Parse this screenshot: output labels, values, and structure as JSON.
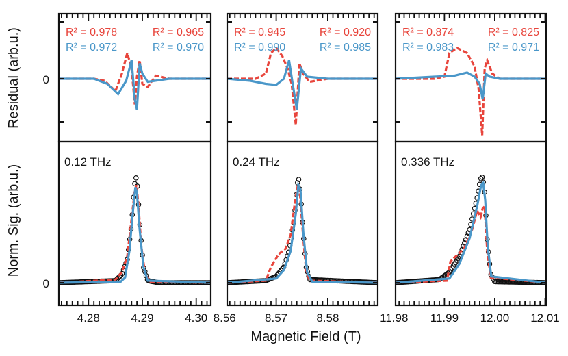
{
  "chart_data": {
    "type": "line",
    "xlabel": "Magnetic Field (T)",
    "ylabel_top": "Residual (arb.u.)",
    "ylabel_bottom": "Norm. Sig. (arb.u.)",
    "y_zero_label": "0",
    "colors": {
      "data": "#111111",
      "red": "#e8453c",
      "blue": "#4a97c9"
    },
    "panels": [
      {
        "frequency": "0.12 THz",
        "xlim": [
          4.2745,
          4.3027
        ],
        "xticks": [
          "4.28",
          "4.29",
          "4.30"
        ],
        "xtick_values": [
          4.28,
          4.29,
          4.3
        ],
        "r2": {
          "red_left": "R² = 0.978",
          "red_right": "R² = 0.965",
          "blue_left": "R² = 0.972",
          "blue_right": "R² = 0.970"
        },
        "residual": {
          "red": [
            [
              4.2745,
              0
            ],
            [
              4.281,
              0
            ],
            [
              4.283,
              -0.02
            ],
            [
              4.285,
              -0.12
            ],
            [
              4.2862,
              0.05
            ],
            [
              4.2872,
              0.25
            ],
            [
              4.288,
              0.1
            ],
            [
              4.2886,
              -0.25
            ],
            [
              4.289,
              0.02
            ],
            [
              4.2895,
              0.18
            ],
            [
              4.29,
              -0.05
            ],
            [
              4.291,
              -0.08
            ],
            [
              4.2925,
              0.03
            ],
            [
              4.295,
              0
            ],
            [
              4.3027,
              0
            ]
          ],
          "blue": [
            [
              4.2745,
              0
            ],
            [
              4.281,
              0
            ],
            [
              4.2835,
              -0.05
            ],
            [
              4.2855,
              -0.15
            ],
            [
              4.287,
              -0.02
            ],
            [
              4.288,
              0.18
            ],
            [
              4.2886,
              -0.2
            ],
            [
              4.289,
              -0.3
            ],
            [
              4.2895,
              0.15
            ],
            [
              4.29,
              0.05
            ],
            [
              4.291,
              -0.03
            ],
            [
              4.295,
              0
            ],
            [
              4.3027,
              0
            ]
          ]
        },
        "signal": {
          "data": [
            [
              4.2745,
              0
            ],
            [
              4.285,
              0.02
            ],
            [
              4.2862,
              0.08
            ],
            [
              4.2872,
              0.22
            ],
            [
              4.288,
              0.55
            ],
            [
              4.2885,
              0.9
            ],
            [
              4.2888,
              1.0
            ],
            [
              4.2891,
              0.9
            ],
            [
              4.2896,
              0.5
            ],
            [
              4.2902,
              0.15
            ],
            [
              4.291,
              0.02
            ],
            [
              4.293,
              0
            ],
            [
              4.3027,
              0
            ]
          ],
          "red": [
            [
              4.2745,
              0
            ],
            [
              4.285,
              0.03
            ],
            [
              4.2862,
              0.1
            ],
            [
              4.2872,
              0.25
            ],
            [
              4.288,
              0.6
            ],
            [
              4.2886,
              0.87
            ],
            [
              4.2889,
              0.92
            ],
            [
              4.2893,
              0.72
            ],
            [
              4.2898,
              0.35
            ],
            [
              4.2905,
              0.08
            ],
            [
              4.2915,
              0.01
            ],
            [
              4.3027,
              0
            ]
          ],
          "blue": [
            [
              4.2745,
              0
            ],
            [
              4.286,
              0.01
            ],
            [
              4.2868,
              0.05
            ],
            [
              4.2876,
              0.3
            ],
            [
              4.2882,
              0.65
            ],
            [
              4.2887,
              0.9
            ],
            [
              4.289,
              0.85
            ],
            [
              4.2895,
              0.5
            ],
            [
              4.2902,
              0.15
            ],
            [
              4.291,
              0.02
            ],
            [
              4.3027,
              0
            ]
          ]
        }
      },
      {
        "frequency": "0.24 THz",
        "xlim": [
          8.5605,
          8.5897
        ],
        "xticks": [
          "8.56",
          "8.57",
          "8.58"
        ],
        "xtick_values": [
          8.56,
          8.57,
          8.58
        ],
        "r2": {
          "red_left": "R² = 0.945",
          "red_right": "R² = 0.920",
          "blue_left": "R² = 0.990",
          "blue_right": "R² = 0.985"
        },
        "residual": {
          "red": [
            [
              8.5605,
              0
            ],
            [
              8.566,
              0
            ],
            [
              8.568,
              0.05
            ],
            [
              8.569,
              0.25
            ],
            [
              8.57,
              0.3
            ],
            [
              8.5712,
              0.22
            ],
            [
              8.5722,
              0.1
            ],
            [
              8.573,
              -0.05
            ],
            [
              8.5738,
              -0.45
            ],
            [
              8.5745,
              0.15
            ],
            [
              8.5752,
              0.05
            ],
            [
              8.5765,
              -0.03
            ],
            [
              8.58,
              0
            ],
            [
              8.5897,
              0
            ]
          ],
          "blue": [
            [
              8.5605,
              0
            ],
            [
              8.565,
              -0.02
            ],
            [
              8.568,
              -0.05
            ],
            [
              8.57,
              -0.06
            ],
            [
              8.5715,
              0.0
            ],
            [
              8.5725,
              0.18
            ],
            [
              8.5732,
              -0.05
            ],
            [
              8.574,
              -0.3
            ],
            [
              8.5748,
              0.1
            ],
            [
              8.576,
              0.02
            ],
            [
              8.58,
              0
            ],
            [
              8.5897,
              0
            ]
          ]
        },
        "signal": {
          "data": [
            [
              8.5605,
              0
            ],
            [
              8.568,
              0.02
            ],
            [
              8.57,
              0.06
            ],
            [
              8.5715,
              0.15
            ],
            [
              8.5725,
              0.3
            ],
            [
              8.5735,
              0.6
            ],
            [
              8.574,
              0.9
            ],
            [
              8.5743,
              1.0
            ],
            [
              8.5747,
              0.85
            ],
            [
              8.5752,
              0.5
            ],
            [
              8.5758,
              0.15
            ],
            [
              8.5765,
              0.03
            ],
            [
              8.5897,
              0
            ]
          ],
          "red": [
            [
              8.5605,
              0
            ],
            [
              8.568,
              0.02
            ],
            [
              8.569,
              0.15
            ],
            [
              8.5705,
              0.27
            ],
            [
              8.5718,
              0.32
            ],
            [
              8.5728,
              0.45
            ],
            [
              8.5736,
              0.75
            ],
            [
              8.5742,
              0.92
            ],
            [
              8.5746,
              0.85
            ],
            [
              8.5752,
              0.45
            ],
            [
              8.5758,
              0.12
            ],
            [
              8.5765,
              0.02
            ],
            [
              8.5897,
              0
            ]
          ],
          "blue": [
            [
              8.5605,
              0
            ],
            [
              8.57,
              0.04
            ],
            [
              8.5715,
              0.12
            ],
            [
              8.5728,
              0.3
            ],
            [
              8.5738,
              0.65
            ],
            [
              8.5743,
              0.92
            ],
            [
              8.5747,
              0.88
            ],
            [
              8.5753,
              0.45
            ],
            [
              8.576,
              0.1
            ],
            [
              8.577,
              0.01
            ],
            [
              8.5897,
              0
            ]
          ]
        }
      },
      {
        "frequency": "0.336 THz",
        "xlim": [
          11.9803,
          12.0102
        ],
        "xticks": [
          "11.98",
          "11.99",
          "12.00",
          "12.01"
        ],
        "xtick_values": [
          11.98,
          11.99,
          12.0,
          12.01
        ],
        "r2": {
          "red_left": "R² = 0.874",
          "red_right": "R² = 0.825",
          "blue_left": "R² = 0.983",
          "blue_right": "R² = 0.971"
        },
        "residual": {
          "red": [
            [
              11.9803,
              0
            ],
            [
              11.988,
              0
            ],
            [
              11.99,
              0.02
            ],
            [
              11.991,
              0.25
            ],
            [
              11.9925,
              0.3
            ],
            [
              11.9945,
              0.25
            ],
            [
              11.996,
              0.12
            ],
            [
              11.9968,
              -0.1
            ],
            [
              11.9975,
              -0.55
            ],
            [
              11.998,
              0.1
            ],
            [
              11.9985,
              0.18
            ],
            [
              11.9995,
              0.05
            ],
            [
              12.001,
              0
            ],
            [
              12.0102,
              0
            ]
          ],
          "blue": [
            [
              11.9803,
              0
            ],
            [
              11.988,
              0.02
            ],
            [
              11.992,
              0.03
            ],
            [
              11.9945,
              0.06
            ],
            [
              11.996,
              0.02
            ],
            [
              11.997,
              -0.05
            ],
            [
              11.9976,
              -0.2
            ],
            [
              11.9982,
              0.05
            ],
            [
              11.999,
              0.02
            ],
            [
              12.001,
              0
            ],
            [
              12.0102,
              0
            ]
          ]
        },
        "signal": {
          "data": [
            [
              11.9803,
              0
            ],
            [
              11.989,
              0.03
            ],
            [
              11.991,
              0.1
            ],
            [
              11.993,
              0.25
            ],
            [
              11.995,
              0.5
            ],
            [
              11.9965,
              0.8
            ],
            [
              11.9972,
              0.98
            ],
            [
              11.9976,
              1.0
            ],
            [
              11.998,
              0.85
            ],
            [
              11.9985,
              0.4
            ],
            [
              11.9992,
              0.08
            ],
            [
              12.0,
              0.01
            ],
            [
              12.0102,
              0
            ]
          ],
          "red": [
            [
              11.9803,
              0
            ],
            [
              11.9905,
              0.02
            ],
            [
              11.9912,
              0.2
            ],
            [
              11.9925,
              0.26
            ],
            [
              11.994,
              0.33
            ],
            [
              11.9955,
              0.5
            ],
            [
              11.9965,
              0.68
            ],
            [
              11.9972,
              0.62
            ],
            [
              11.9976,
              0.7
            ],
            [
              11.998,
              0.72
            ],
            [
              11.9985,
              0.3
            ],
            [
              11.9992,
              0.05
            ],
            [
              12.0102,
              0
            ]
          ],
          "blue": [
            [
              11.9803,
              0
            ],
            [
              11.991,
              0.04
            ],
            [
              11.993,
              0.18
            ],
            [
              11.995,
              0.42
            ],
            [
              11.9965,
              0.72
            ],
            [
              11.9973,
              0.92
            ],
            [
              11.9977,
              0.94
            ],
            [
              11.9981,
              0.78
            ],
            [
              11.9986,
              0.35
            ],
            [
              11.9993,
              0.06
            ],
            [
              12.0102,
              0
            ]
          ]
        }
      }
    ]
  }
}
